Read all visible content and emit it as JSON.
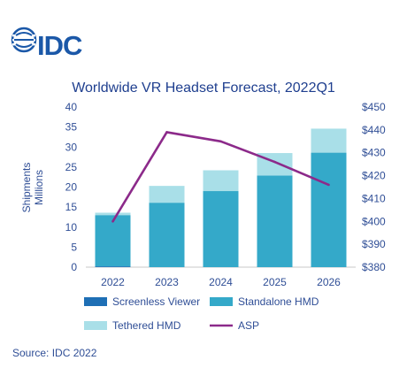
{
  "logo": {
    "text": "IDC"
  },
  "source": "Source: IDC 2022",
  "chart_data": {
    "type": "bar",
    "title": "Worldwide VR Headset Forecast, 2022Q1",
    "ylabel": "Shipments Millions",
    "ylabel_lines": [
      "Shipments",
      "Millions"
    ],
    "categories": [
      "2022",
      "2023",
      "2024",
      "2025",
      "2026"
    ],
    "ylim": [
      0,
      40
    ],
    "yticks": [
      0,
      5,
      10,
      15,
      20,
      25,
      30,
      35,
      40
    ],
    "y2lim": [
      380,
      450
    ],
    "y2ticks": [
      "$380",
      "$390",
      "$400",
      "$410",
      "$420",
      "$430",
      "$440",
      "$450"
    ],
    "y2values": [
      380,
      390,
      400,
      410,
      420,
      430,
      440,
      450
    ],
    "stacked": true,
    "series": [
      {
        "name": "Screenless Viewer",
        "color": "#1e6fb5",
        "type": "bar",
        "values": [
          0.2,
          0.0,
          0.0,
          0.0,
          0.0
        ]
      },
      {
        "name": "Standalone HMD",
        "color": "#34a9c9",
        "type": "bar",
        "values": [
          12.8,
          16.1,
          19.0,
          22.9,
          28.6
        ]
      },
      {
        "name": "Tethered HMD",
        "color": "#a9dfe8",
        "type": "bar",
        "values": [
          0.6,
          4.2,
          5.2,
          5.6,
          6.0
        ]
      },
      {
        "name": "ASP",
        "color": "#8c2a8a",
        "type": "line",
        "axis": "y2",
        "values": [
          400,
          439,
          435,
          426,
          416
        ]
      }
    ],
    "legend": "bottom",
    "grid": false
  }
}
